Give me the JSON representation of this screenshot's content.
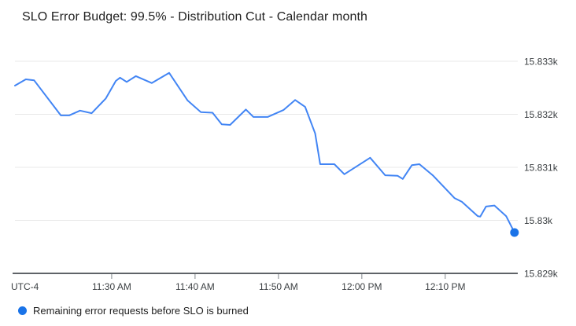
{
  "title": "SLO Error Budget: 99.5% - Distribution Cut - Calendar month",
  "legend": {
    "label": "Remaining error requests before SLO is burned"
  },
  "style": {
    "background": "#ffffff",
    "title_color": "#212121",
    "grid_color": "#e8e8e8",
    "axis_color": "#5f6368",
    "tick_color": "#80868b",
    "label_color": "#3c4043",
    "line_color": "#4285f4",
    "dot_color": "#1a73e8",
    "legend_text_color": "#212121"
  },
  "chart_data": {
    "type": "line",
    "title": "SLO Error Budget: 99.5% - Distribution Cut - Calendar month",
    "legend_position": "bottom-left",
    "grid": true,
    "x_axis": {
      "utc_label": "UTC-4",
      "unit": "minutes-offset from chart start (~11:18 AM)",
      "range": [
        0,
        60.3
      ],
      "ticks": [
        {
          "label": "11:30 AM",
          "t": 11.6
        },
        {
          "label": "11:40 AM",
          "t": 21.6
        },
        {
          "label": "11:50 AM",
          "t": 31.6
        },
        {
          "label": "12:00 PM",
          "t": 41.6
        },
        {
          "label": "12:10 PM",
          "t": 51.6
        }
      ]
    },
    "y_axis": {
      "unit": "remaining error requests",
      "range": [
        15829,
        15833
      ],
      "ticks": [
        {
          "label": "15.833k",
          "value": 15833
        },
        {
          "label": "15.832k",
          "value": 15832
        },
        {
          "label": "15.831k",
          "value": 15831
        },
        {
          "label": "15.83k",
          "value": 15830
        },
        {
          "label": "15.829k",
          "value": 15829
        }
      ]
    },
    "series": [
      {
        "name": "Remaining error requests before SLO is burned",
        "color": "#4285f4",
        "end_dot_color": "#1a73e8",
        "points": [
          [
            0.0,
            15832.54
          ],
          [
            1.3,
            15832.66
          ],
          [
            2.3,
            15832.64
          ],
          [
            5.5,
            15831.98
          ],
          [
            6.5,
            15831.98
          ],
          [
            7.8,
            15832.07
          ],
          [
            9.2,
            15832.02
          ],
          [
            10.9,
            15832.3
          ],
          [
            12.1,
            15832.63
          ],
          [
            12.6,
            15832.69
          ],
          [
            13.4,
            15832.61
          ],
          [
            14.5,
            15832.72
          ],
          [
            16.4,
            15832.59
          ],
          [
            18.5,
            15832.78
          ],
          [
            20.7,
            15832.26
          ],
          [
            22.3,
            15832.04
          ],
          [
            23.7,
            15832.03
          ],
          [
            24.8,
            15831.81
          ],
          [
            25.8,
            15831.8
          ],
          [
            27.7,
            15832.09
          ],
          [
            28.6,
            15831.95
          ],
          [
            30.3,
            15831.95
          ],
          [
            32.2,
            15832.08
          ],
          [
            33.6,
            15832.27
          ],
          [
            34.8,
            15832.14
          ],
          [
            36.0,
            15831.64
          ],
          [
            36.6,
            15831.06
          ],
          [
            38.3,
            15831.06
          ],
          [
            39.5,
            15830.87
          ],
          [
            42.6,
            15831.18
          ],
          [
            44.4,
            15830.85
          ],
          [
            45.9,
            15830.84
          ],
          [
            46.5,
            15830.78
          ],
          [
            47.6,
            15831.04
          ],
          [
            48.5,
            15831.06
          ],
          [
            50.1,
            15830.85
          ],
          [
            52.7,
            15830.42
          ],
          [
            53.6,
            15830.35
          ],
          [
            55.5,
            15830.08
          ],
          [
            55.8,
            15830.07
          ],
          [
            56.5,
            15830.26
          ],
          [
            57.5,
            15830.28
          ],
          [
            58.9,
            15830.08
          ],
          [
            59.9,
            15829.77
          ]
        ]
      }
    ]
  }
}
